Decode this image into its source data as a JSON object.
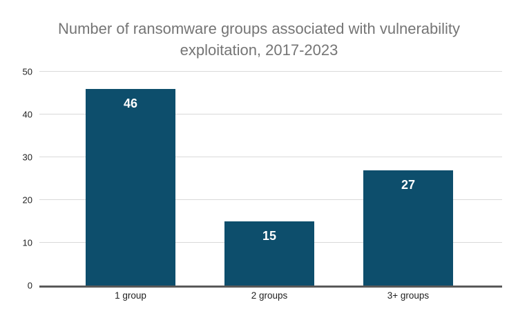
{
  "chart_data": {
    "type": "bar",
    "title": "Number of ransomware groups associated with vulnerability exploitation, 2017-2023",
    "categories": [
      "1 group",
      "2 groups",
      "3+ groups"
    ],
    "values": [
      46,
      15,
      27
    ],
    "value_labels": [
      "46",
      "15",
      "27"
    ],
    "xlabel": "",
    "ylabel": "",
    "ylim": [
      0,
      50
    ],
    "yticks": [
      0,
      10,
      20,
      30,
      40,
      50
    ],
    "grid": "horizontal",
    "legend": "none",
    "colors": {
      "bar": "#0d4e6c",
      "value_label": "#ffffff",
      "title": "#757575",
      "tick_label": "#212121",
      "gridline": "#d9d9d9",
      "axis_line": "#595959",
      "background": "#ffffff"
    }
  }
}
